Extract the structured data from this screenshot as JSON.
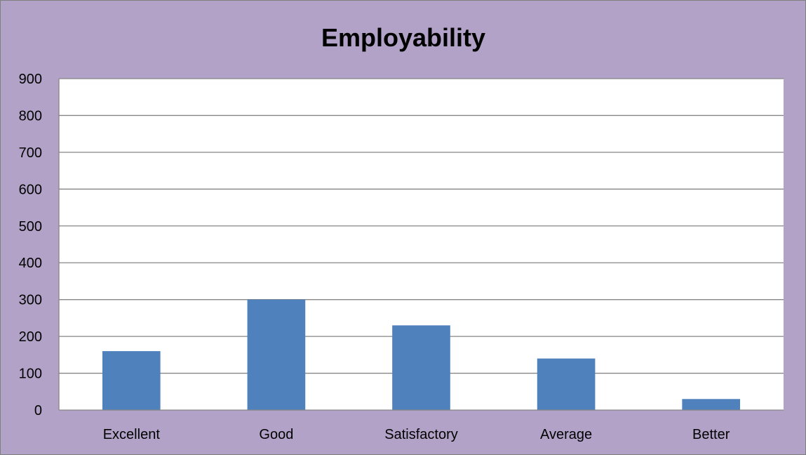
{
  "chart_data": {
    "type": "bar",
    "title": "Employability",
    "xlabel": "",
    "ylabel": "",
    "categories": [
      "Excellent",
      "Good",
      "Satisfactory",
      "Average",
      "Better"
    ],
    "values": [
      160,
      300,
      230,
      140,
      30
    ],
    "ylim": [
      0,
      900
    ],
    "yticks": [
      "0",
      "100",
      "200",
      "300",
      "400",
      "500",
      "600",
      "700",
      "800",
      "900"
    ],
    "grid": true,
    "legend": "none",
    "colors": {
      "bar": "#4f81bd",
      "background": "#b2a2c8",
      "plot_area": "#ffffff",
      "gridline": "#868686"
    }
  }
}
